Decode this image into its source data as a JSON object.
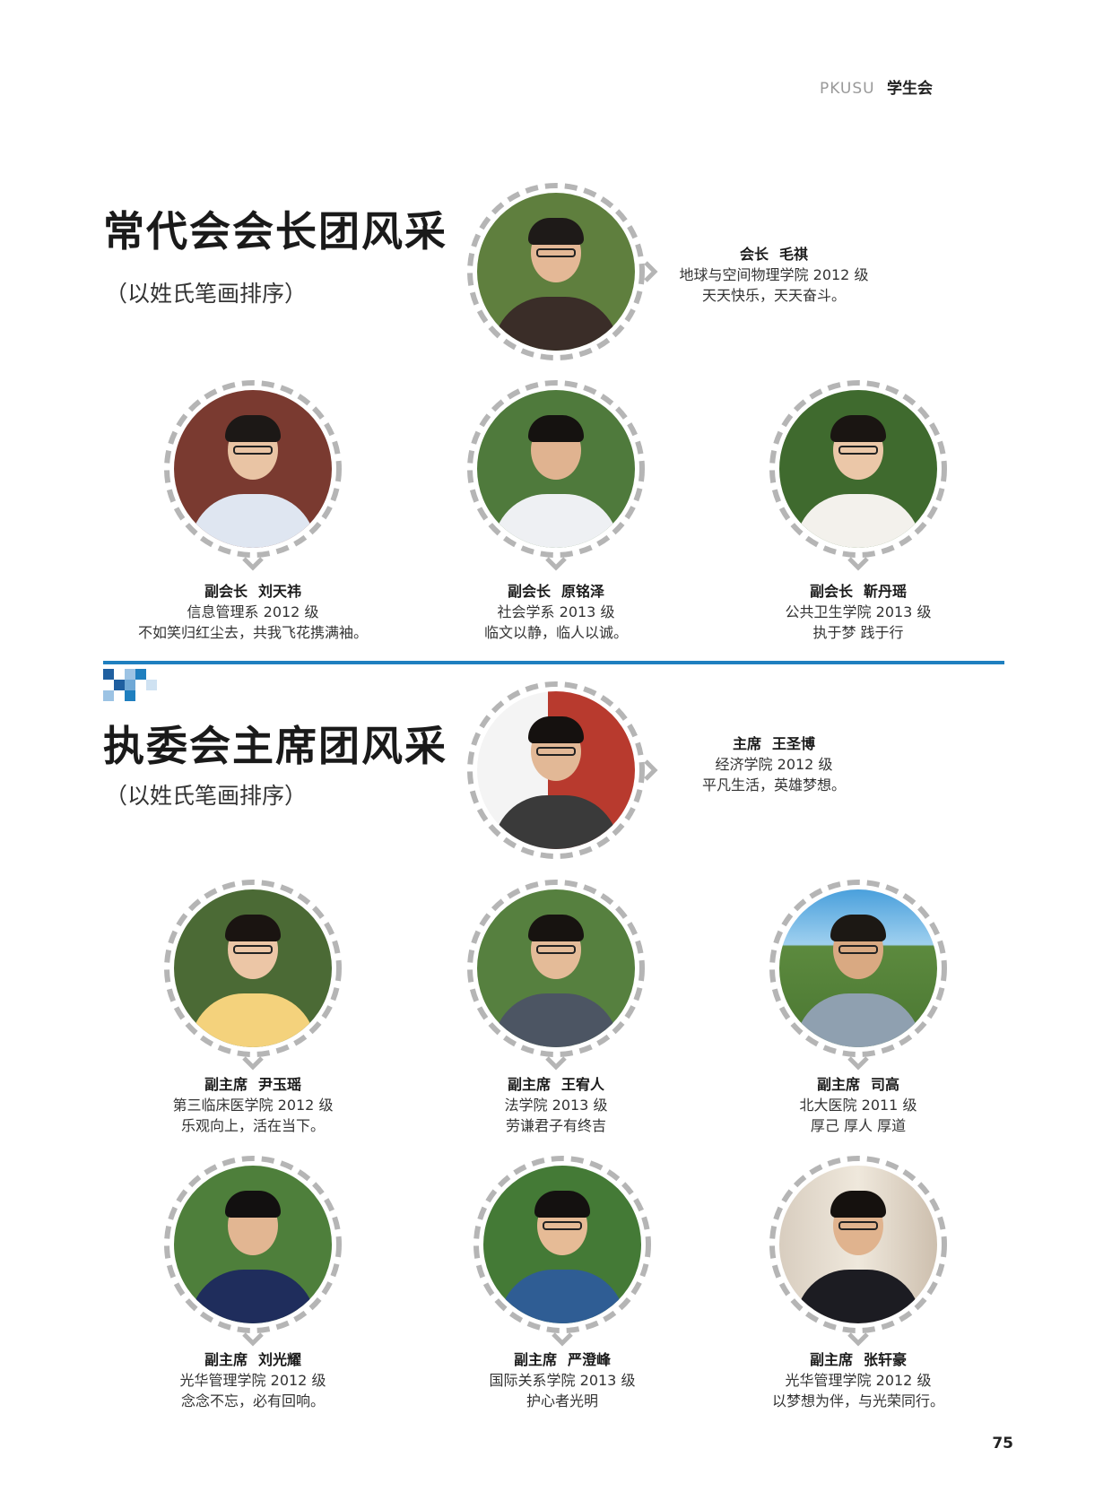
{
  "header": {
    "brand": "PKUSU",
    "org": "学生会"
  },
  "section1": {
    "title": "常代会会长团风采",
    "subtitle": "（以姓氏笔画排序）",
    "leader": {
      "role": "会长",
      "name": "毛祺",
      "dept": "地球与空间物理学院 2012 级",
      "motto": "天天快乐，天天奋斗。"
    },
    "members": [
      {
        "role": "副会长",
        "name": "刘天祎",
        "dept": "信息管理系 2012 级",
        "motto": "不如笑归红尘去，共我飞花携满袖。"
      },
      {
        "role": "副会长",
        "name": "原铭泽",
        "dept": "社会学系 2013 级",
        "motto": "临文以静，临人以诚。"
      },
      {
        "role": "副会长",
        "name": "靳丹瑶",
        "dept": "公共卫生学院 2013 级",
        "motto": "执于梦 践于行"
      }
    ]
  },
  "section2": {
    "title": "执委会主席团风采",
    "subtitle": "（以姓氏笔画排序）",
    "leader": {
      "role": "主席",
      "name": "王圣博",
      "dept": "经济学院 2012 级",
      "motto": "平凡生活，英雄梦想。"
    },
    "members": [
      {
        "role": "副主席",
        "name": "尹玉瑶",
        "dept": "第三临床医学院 2012 级",
        "motto": "乐观向上，活在当下。"
      },
      {
        "role": "副主席",
        "name": "王宥人",
        "dept": "法学院 2013 级",
        "motto": "劳谦君子有终吉"
      },
      {
        "role": "副主席",
        "name": "司高",
        "dept": "北大医院 2011 级",
        "motto": "厚己 厚人 厚道"
      },
      {
        "role": "副主席",
        "name": "刘光耀",
        "dept": "光华管理学院 2012 级",
        "motto": "念念不忘，必有回响。"
      },
      {
        "role": "副主席",
        "name": "严澄峰",
        "dept": "国际关系学院 2013 级",
        "motto": "护心者光明"
      },
      {
        "role": "副主席",
        "name": "张轩豪",
        "dept": "光华管理学院 2012 级",
        "motto": "以梦想为伴，与光荣同行。"
      }
    ]
  },
  "colors": {
    "accent": "#1f7fbf",
    "ring": "#b5b5b5"
  },
  "page_number": "75"
}
